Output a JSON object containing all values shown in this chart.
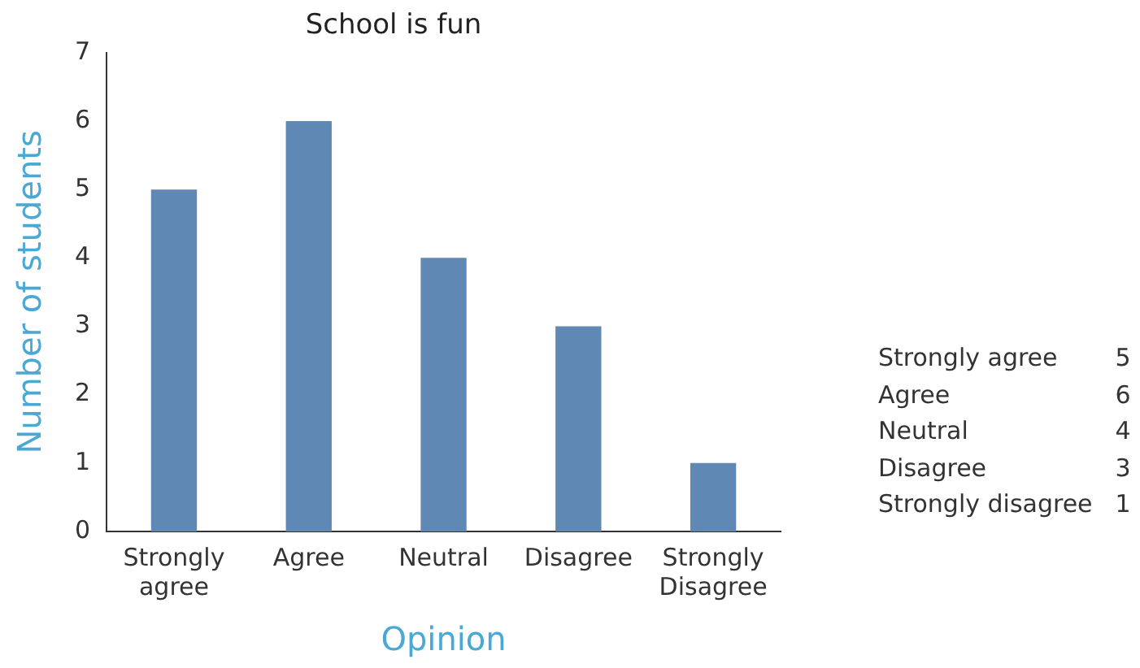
{
  "chart_data": {
    "type": "bar",
    "title": "School is fun",
    "xlabel": "Opinion",
    "ylabel": "Number of students",
    "categories": [
      "Strongly agree",
      "Agree",
      "Neutral",
      "Disagree",
      "Strongly Disagree"
    ],
    "values": [
      5,
      6,
      4,
      3,
      1
    ],
    "color": "#6088b4",
    "ylim": [
      0,
      7
    ],
    "yticks": [
      0,
      1,
      2,
      3,
      4,
      5,
      6,
      7
    ],
    "grid": false,
    "legend": false,
    "annotations": [
      "Strongly agree",
      "5",
      "Agree",
      "6",
      "Neutral",
      "4",
      "Disagree",
      "3",
      "Strongly disagree",
      "1"
    ]
  }
}
